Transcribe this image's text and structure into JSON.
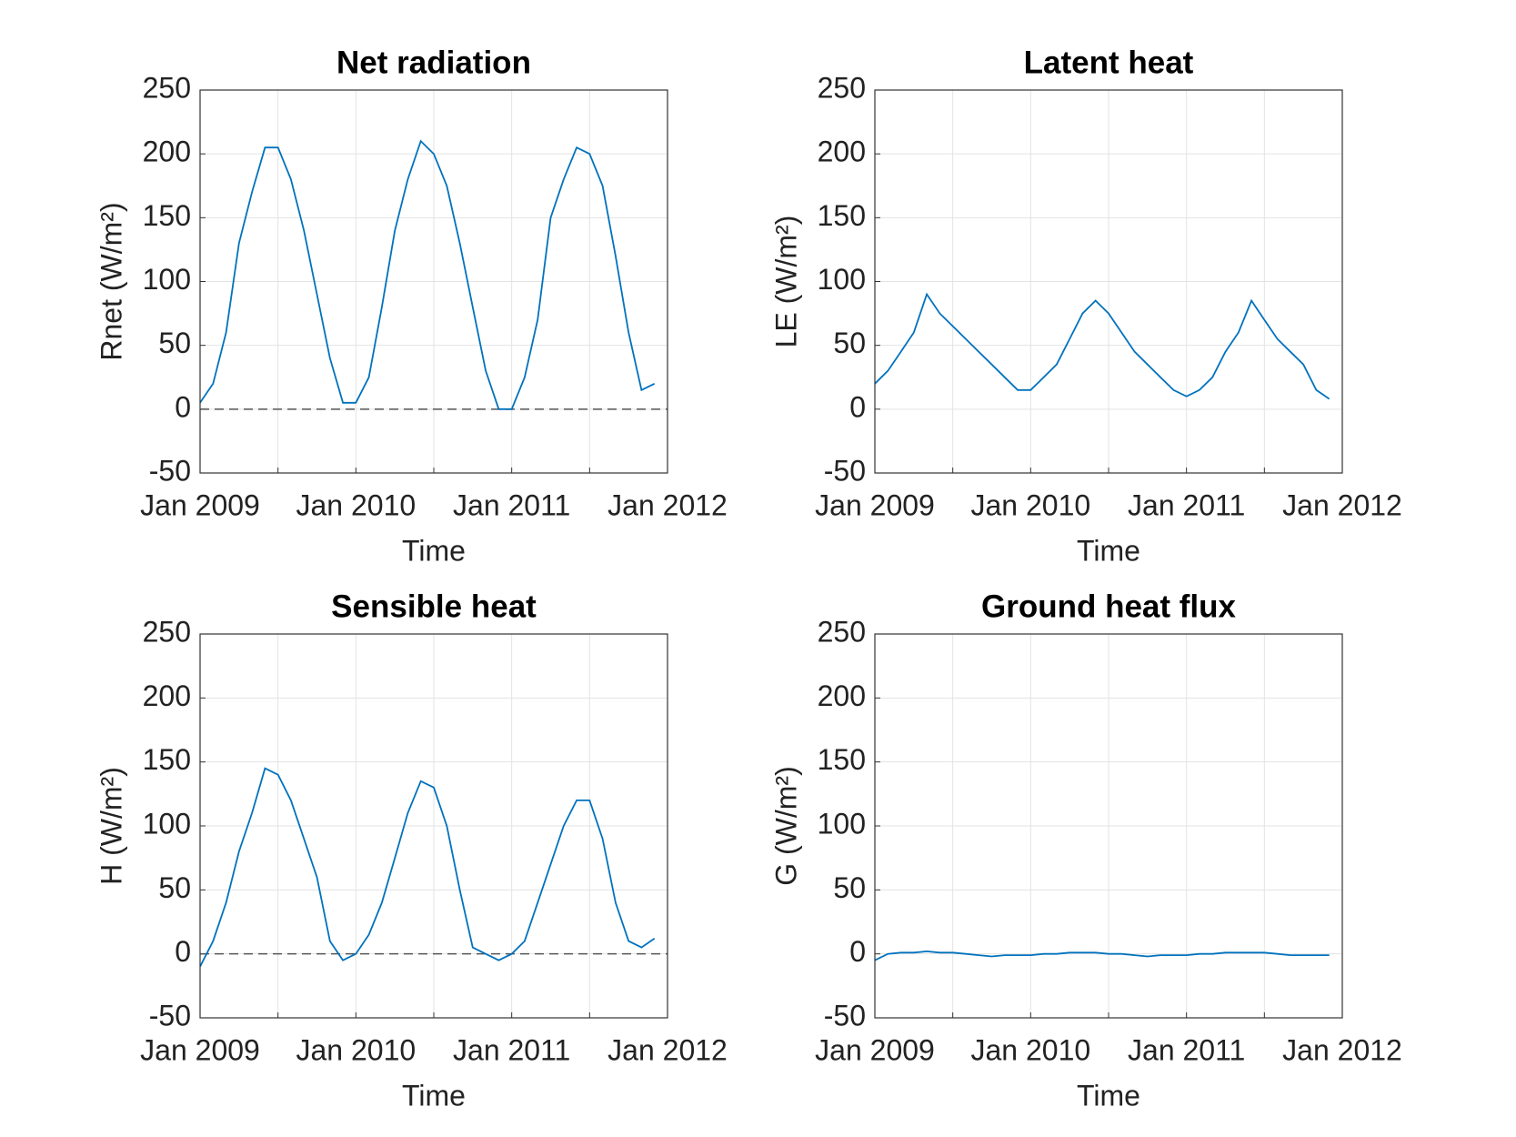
{
  "chart_data": [
    {
      "type": "line",
      "title": "Net radiation",
      "xlabel": "Time",
      "ylabel": "Rnet (W/m²)",
      "x": [
        "2009-01",
        "2009-02",
        "2009-03",
        "2009-04",
        "2009-05",
        "2009-06",
        "2009-07",
        "2009-08",
        "2009-09",
        "2009-10",
        "2009-11",
        "2009-12",
        "2010-01",
        "2010-02",
        "2010-03",
        "2010-04",
        "2010-05",
        "2010-06",
        "2010-07",
        "2010-08",
        "2010-09",
        "2010-10",
        "2010-11",
        "2010-12",
        "2011-01",
        "2011-02",
        "2011-03",
        "2011-04",
        "2011-05",
        "2011-06",
        "2011-07",
        "2011-08",
        "2011-09",
        "2011-10",
        "2011-11",
        "2011-12"
      ],
      "values": [
        5,
        20,
        60,
        130,
        170,
        205,
        205,
        180,
        140,
        90,
        40,
        5,
        5,
        25,
        80,
        140,
        180,
        210,
        200,
        175,
        130,
        80,
        30,
        0,
        0,
        25,
        70,
        150,
        180,
        205,
        200,
        175,
        120,
        60,
        15,
        20
      ],
      "color": "#0072bd",
      "xlim": [
        "2009-01",
        "2012-01"
      ],
      "xticks": [
        {
          "value": "2009-01",
          "label": "Jan 2009"
        },
        {
          "value": "2009-07",
          "label": null
        },
        {
          "value": "2010-01",
          "label": "Jan 2010"
        },
        {
          "value": "2010-07",
          "label": null
        },
        {
          "value": "2011-01",
          "label": "Jan 2011"
        },
        {
          "value": "2011-07",
          "label": null
        },
        {
          "value": "2012-01",
          "label": "Jan 2012"
        }
      ],
      "ylim": [
        -50,
        250
      ],
      "yticks": [
        -50,
        0,
        50,
        100,
        150,
        200,
        250
      ],
      "grid": true,
      "zero_line": true
    },
    {
      "type": "line",
      "title": "Latent heat",
      "xlabel": "Time",
      "ylabel": "LE (W/m²)",
      "x": [
        "2009-01",
        "2009-02",
        "2009-03",
        "2009-04",
        "2009-05",
        "2009-06",
        "2009-07",
        "2009-08",
        "2009-09",
        "2009-10",
        "2009-11",
        "2009-12",
        "2010-01",
        "2010-02",
        "2010-03",
        "2010-04",
        "2010-05",
        "2010-06",
        "2010-07",
        "2010-08",
        "2010-09",
        "2010-10",
        "2010-11",
        "2010-12",
        "2011-01",
        "2011-02",
        "2011-03",
        "2011-04",
        "2011-05",
        "2011-06",
        "2011-07",
        "2011-08",
        "2011-09",
        "2011-10",
        "2011-11",
        "2011-12"
      ],
      "values": [
        20,
        30,
        45,
        60,
        90,
        75,
        65,
        55,
        45,
        35,
        25,
        15,
        15,
        25,
        35,
        55,
        75,
        85,
        75,
        60,
        45,
        35,
        25,
        15,
        10,
        15,
        25,
        45,
        60,
        85,
        70,
        55,
        45,
        35,
        15,
        8
      ],
      "color": "#0072bd",
      "xlim": [
        "2009-01",
        "2012-01"
      ],
      "xticks": [
        {
          "value": "2009-01",
          "label": "Jan 2009"
        },
        {
          "value": "2009-07",
          "label": null
        },
        {
          "value": "2010-01",
          "label": "Jan 2010"
        },
        {
          "value": "2010-07",
          "label": null
        },
        {
          "value": "2011-01",
          "label": "Jan 2011"
        },
        {
          "value": "2011-07",
          "label": null
        },
        {
          "value": "2012-01",
          "label": "Jan 2012"
        }
      ],
      "ylim": [
        -50,
        250
      ],
      "yticks": [
        -50,
        0,
        50,
        100,
        150,
        200,
        250
      ],
      "grid": true,
      "zero_line": false
    },
    {
      "type": "line",
      "title": "Sensible heat",
      "xlabel": "Time",
      "ylabel": "H (W/m²)",
      "x": [
        "2009-01",
        "2009-02",
        "2009-03",
        "2009-04",
        "2009-05",
        "2009-06",
        "2009-07",
        "2009-08",
        "2009-09",
        "2009-10",
        "2009-11",
        "2009-12",
        "2010-01",
        "2010-02",
        "2010-03",
        "2010-04",
        "2010-05",
        "2010-06",
        "2010-07",
        "2010-08",
        "2010-09",
        "2010-10",
        "2010-11",
        "2010-12",
        "2011-01",
        "2011-02",
        "2011-03",
        "2011-04",
        "2011-05",
        "2011-06",
        "2011-07",
        "2011-08",
        "2011-09",
        "2011-10",
        "2011-11",
        "2011-12"
      ],
      "values": [
        -10,
        10,
        40,
        80,
        110,
        145,
        140,
        120,
        90,
        60,
        10,
        -5,
        0,
        15,
        40,
        75,
        110,
        135,
        130,
        100,
        50,
        5,
        0,
        -5,
        0,
        10,
        40,
        70,
        100,
        120,
        120,
        90,
        40,
        10,
        5,
        12
      ],
      "color": "#0072bd",
      "xlim": [
        "2009-01",
        "2012-01"
      ],
      "xticks": [
        {
          "value": "2009-01",
          "label": "Jan 2009"
        },
        {
          "value": "2009-07",
          "label": null
        },
        {
          "value": "2010-01",
          "label": "Jan 2010"
        },
        {
          "value": "2010-07",
          "label": null
        },
        {
          "value": "2011-01",
          "label": "Jan 2011"
        },
        {
          "value": "2011-07",
          "label": null
        },
        {
          "value": "2012-01",
          "label": "Jan 2012"
        }
      ],
      "ylim": [
        -50,
        250
      ],
      "yticks": [
        -50,
        0,
        50,
        100,
        150,
        200,
        250
      ],
      "grid": true,
      "zero_line": true
    },
    {
      "type": "line",
      "title": "Ground heat flux",
      "xlabel": "Time",
      "ylabel": "G (W/m²)",
      "x": [
        "2009-01",
        "2009-02",
        "2009-03",
        "2009-04",
        "2009-05",
        "2009-06",
        "2009-07",
        "2009-08",
        "2009-09",
        "2009-10",
        "2009-11",
        "2009-12",
        "2010-01",
        "2010-02",
        "2010-03",
        "2010-04",
        "2010-05",
        "2010-06",
        "2010-07",
        "2010-08",
        "2010-09",
        "2010-10",
        "2010-11",
        "2010-12",
        "2011-01",
        "2011-02",
        "2011-03",
        "2011-04",
        "2011-05",
        "2011-06",
        "2011-07",
        "2011-08",
        "2011-09",
        "2011-10",
        "2011-11",
        "2011-12"
      ],
      "values": [
        -5,
        0,
        1,
        1,
        2,
        1,
        1,
        0,
        -1,
        -2,
        -1,
        -1,
        -1,
        0,
        0,
        1,
        1,
        1,
        0,
        0,
        -1,
        -2,
        -1,
        -1,
        -1,
        0,
        0,
        1,
        1,
        1,
        1,
        0,
        -1,
        -1,
        -1,
        -1
      ],
      "color": "#0072bd",
      "xlim": [
        "2009-01",
        "2012-01"
      ],
      "xticks": [
        {
          "value": "2009-01",
          "label": "Jan 2009"
        },
        {
          "value": "2009-07",
          "label": null
        },
        {
          "value": "2010-01",
          "label": "Jan 2010"
        },
        {
          "value": "2010-07",
          "label": null
        },
        {
          "value": "2011-01",
          "label": "Jan 2011"
        },
        {
          "value": "2011-07",
          "label": null
        },
        {
          "value": "2012-01",
          "label": "Jan 2012"
        }
      ],
      "ylim": [
        -50,
        250
      ],
      "yticks": [
        -50,
        0,
        50,
        100,
        150,
        200,
        250
      ],
      "grid": true,
      "zero_line": false
    }
  ]
}
